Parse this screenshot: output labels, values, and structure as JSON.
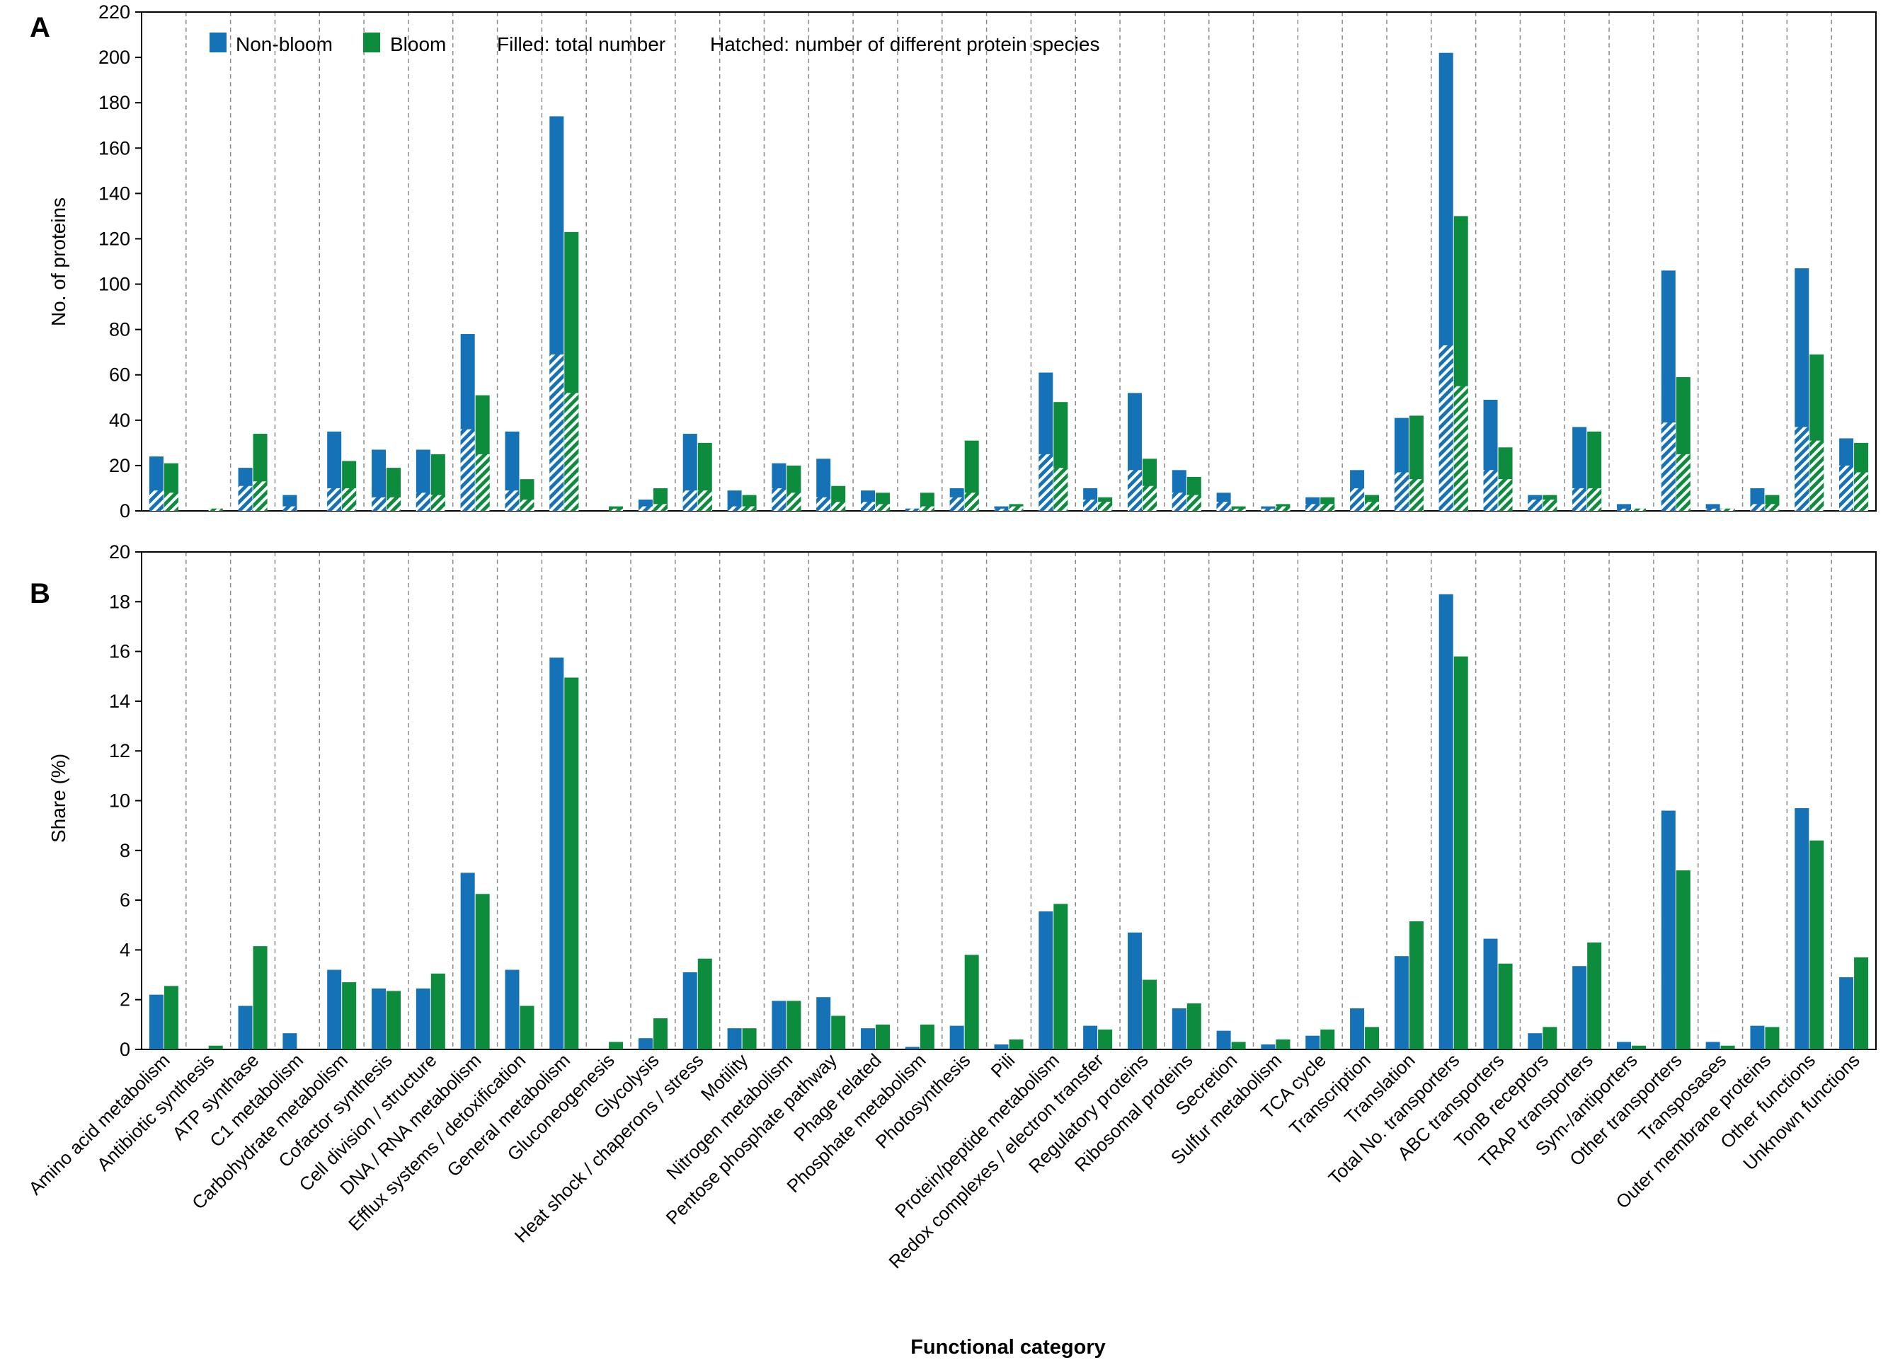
{
  "colors": {
    "non_bloom": "#1572b6",
    "bloom": "#0c8c3c",
    "divider": "#8a8a8a"
  },
  "chart_data": {
    "type": "bar",
    "xlabel": "Functional category",
    "legend": {
      "position": "top-left",
      "series_names": [
        "Non-bloom",
        "Bloom"
      ],
      "filled_note": "Filled: total number",
      "hatched_note": "Hatched: number of different protein species"
    },
    "categories": [
      "Amino acid metabolism",
      "Antibiotic synthesis",
      "ATP synthase",
      "C1 metabolism",
      "Carbohydrate metabolism",
      "Cofactor synthesis",
      "Cell division / structure",
      "DNA / RNA metabolism",
      "Efflux systems / detoxification",
      "General metabolism",
      "Gluconeogenesis",
      "Glycolysis",
      "Heat shock / chaperons / stress",
      "Motility",
      "Nitrogen metabolism",
      "Pentose phosphate pathway",
      "Phage related",
      "Phosphate metabolism",
      "Photosynthesis",
      "Pili",
      "Protein/peptide metabolism",
      "Redox complexes / electron transfer",
      "Regulatory proteins",
      "Ribosomal proteins",
      "Secretion",
      "Sulfur metabolism",
      "TCA cycle",
      "Transcription",
      "Translation",
      "Total No. transporters",
      "ABC transporters",
      "TonB receptors",
      "TRAP transporters",
      "Sym-/antiporters",
      "Other transporters",
      "Transposases",
      "Outer membrane proteins",
      "Other functions",
      "Unknown functions"
    ],
    "panels": [
      {
        "label": "A",
        "ylabel": "No. of proteins",
        "ylim": [
          0,
          220
        ],
        "yticks": [
          0,
          20,
          40,
          60,
          80,
          100,
          120,
          140,
          160,
          180,
          200,
          220
        ],
        "series": [
          {
            "name": "Non-bloom",
            "total": [
              24,
              0,
              19,
              7,
              35,
              27,
              27,
              78,
              35,
              174,
              0,
              5,
              34,
              9,
              21,
              23,
              9,
              1,
              10,
              2,
              61,
              10,
              52,
              18,
              8,
              2,
              6,
              18,
              41,
              202,
              49,
              7,
              37,
              3,
              106,
              3,
              10,
              107,
              32
            ],
            "species": [
              9,
              0,
              11,
              2,
              10,
              6,
              8,
              36,
              9,
              69,
              0,
              2,
              9,
              2,
              10,
              6,
              4,
              1,
              6,
              1,
              25,
              5,
              18,
              8,
              4,
              1,
              3,
              10,
              17,
              73,
              18,
              5,
              10,
              1,
              39,
              1,
              3,
              37,
              20
            ]
          },
          {
            "name": "Bloom",
            "total": [
              21,
              1,
              34,
              0,
              22,
              19,
              25,
              51,
              14,
              123,
              2,
              10,
              30,
              7,
              20,
              11,
              8,
              8,
              31,
              3,
              48,
              6,
              23,
              15,
              2,
              3,
              6,
              7,
              42,
              130,
              28,
              7,
              35,
              1,
              59,
              1,
              7,
              69,
              30
            ],
            "species": [
              8,
              1,
              13,
              0,
              10,
              6,
              7,
              25,
              5,
              52,
              1,
              3,
              9,
              2,
              8,
              4,
              3,
              2,
              8,
              2,
              19,
              4,
              11,
              7,
              1,
              2,
              3,
              4,
              14,
              55,
              14,
              5,
              10,
              1,
              25,
              1,
              3,
              31,
              17
            ]
          }
        ]
      },
      {
        "label": "B",
        "ylabel": "Share (%)",
        "ylim": [
          0,
          20
        ],
        "yticks": [
          0,
          2,
          4,
          6,
          8,
          10,
          12,
          14,
          16,
          18,
          20
        ],
        "series": [
          {
            "name": "Non-bloom",
            "values": [
              2.2,
              0,
              1.75,
              0.65,
              3.2,
              2.45,
              2.45,
              7.1,
              3.2,
              15.75,
              0,
              0.45,
              3.1,
              0.85,
              1.95,
              2.1,
              0.85,
              0.1,
              0.95,
              0.2,
              5.55,
              0.95,
              4.7,
              1.65,
              0.75,
              0.2,
              0.55,
              1.65,
              3.75,
              18.3,
              4.45,
              0.65,
              3.35,
              0.3,
              9.6,
              0.3,
              0.95,
              9.7,
              2.9
            ]
          },
          {
            "name": "Bloom",
            "values": [
              2.55,
              0.15,
              4.15,
              0,
              2.7,
              2.35,
              3.05,
              6.25,
              1.75,
              14.95,
              0.3,
              1.25,
              3.65,
              0.85,
              1.95,
              1.35,
              1.0,
              1.0,
              3.8,
              0.4,
              5.85,
              0.8,
              2.8,
              1.85,
              0.3,
              0.4,
              0.8,
              0.9,
              5.15,
              15.8,
              3.45,
              0.9,
              4.3,
              0.15,
              7.2,
              0.15,
              0.9,
              8.4,
              3.7
            ]
          }
        ]
      }
    ]
  }
}
